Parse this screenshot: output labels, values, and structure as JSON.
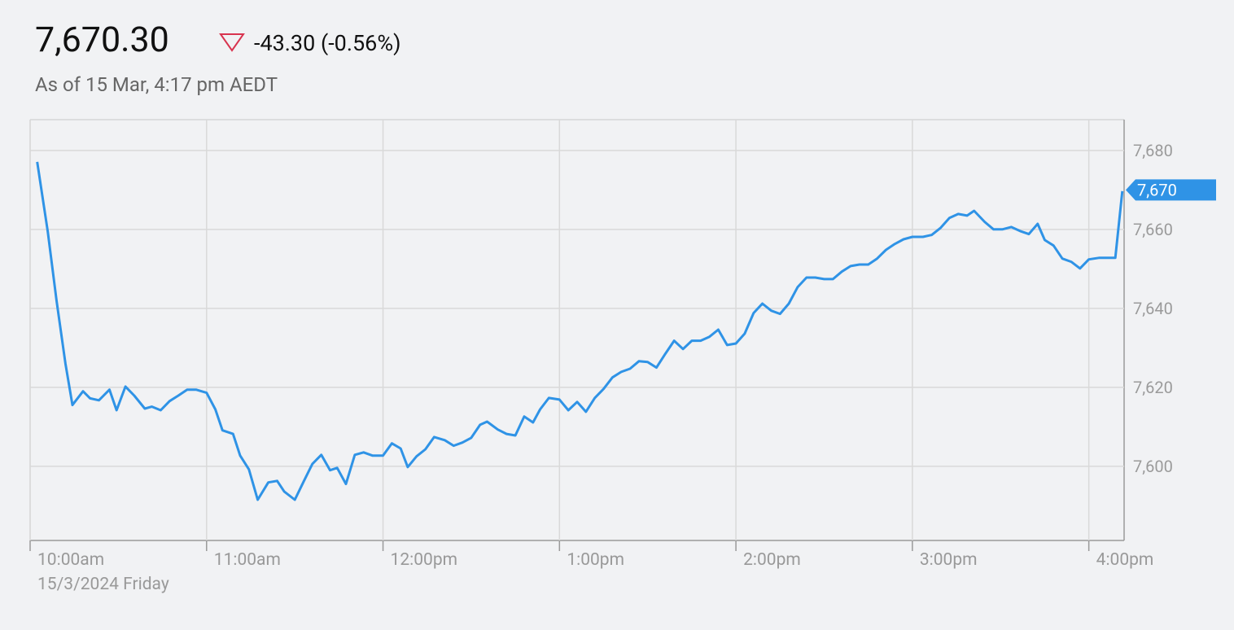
{
  "header": {
    "price": "7,670.30",
    "change": "-43.30 (-0.56%)",
    "as_of": "As of 15 Mar, 4:17 pm AEDT"
  },
  "chart_data": {
    "type": "line",
    "color": "#2f93e6",
    "grid": true,
    "date_label": "15/3/2024 Friday",
    "xlim": [
      10,
      16.2
    ],
    "ylim": [
      7581.2,
      7687.8
    ],
    "xticks": [
      {
        "value": 10,
        "label": "10:00am"
      },
      {
        "value": 11,
        "label": "11:00am"
      },
      {
        "value": 12,
        "label": "12:00pm"
      },
      {
        "value": 13,
        "label": "1:00pm"
      },
      {
        "value": 14,
        "label": "2:00pm"
      },
      {
        "value": 15,
        "label": "3:00pm"
      },
      {
        "value": 16,
        "label": "4:00pm"
      }
    ],
    "yticks": [
      {
        "value": 7600,
        "label": "7,600"
      },
      {
        "value": 7620,
        "label": "7,620"
      },
      {
        "value": 7640,
        "label": "7,640"
      },
      {
        "value": 7660,
        "label": "7,660"
      },
      {
        "value": 7680,
        "label": "7,680"
      }
    ],
    "current_marker": {
      "value": 7670,
      "label": "7,670"
    },
    "x": [
      10.04,
      10.1,
      10.15,
      10.2,
      10.24,
      10.3,
      10.34,
      10.39,
      10.45,
      10.49,
      10.54,
      10.59,
      10.65,
      10.69,
      10.74,
      10.79,
      10.84,
      10.89,
      10.94,
      11.0,
      11.05,
      11.09,
      11.15,
      11.19,
      11.24,
      11.29,
      11.35,
      11.4,
      11.44,
      11.5,
      11.55,
      11.6,
      11.65,
      11.7,
      11.74,
      11.79,
      11.84,
      11.89,
      11.94,
      12.0,
      12.05,
      12.1,
      12.14,
      12.19,
      12.24,
      12.29,
      12.35,
      12.4,
      12.45,
      12.5,
      12.55,
      12.59,
      12.65,
      12.7,
      12.75,
      12.8,
      12.85,
      12.89,
      12.94,
      13.0,
      13.05,
      13.1,
      13.15,
      13.2,
      13.25,
      13.3,
      13.35,
      13.4,
      13.45,
      13.5,
      13.55,
      13.6,
      13.65,
      13.7,
      13.75,
      13.8,
      13.85,
      13.9,
      13.95,
      14.0,
      14.05,
      14.1,
      14.15,
      14.2,
      14.25,
      14.3,
      14.35,
      14.4,
      14.45,
      14.5,
      14.55,
      14.6,
      14.65,
      14.7,
      14.75,
      14.8,
      14.85,
      14.9,
      14.95,
      15.0,
      15.06,
      15.11,
      15.16,
      15.21,
      15.26,
      15.31,
      15.35,
      15.41,
      15.46,
      15.51,
      15.56,
      15.61,
      15.66,
      15.71,
      15.75,
      15.8,
      15.85,
      15.9,
      15.95,
      16.0,
      16.06,
      16.11,
      16.15,
      16.19
    ],
    "values": [
      7677.1,
      7659.4,
      7641.9,
      7626.0,
      7615.5,
      7619.0,
      7617.2,
      7616.7,
      7619.4,
      7614.2,
      7620.2,
      7617.9,
      7614.6,
      7615.1,
      7614.2,
      7616.5,
      7617.9,
      7619.4,
      7619.4,
      7618.6,
      7614.4,
      7609.1,
      7608.2,
      7602.7,
      7599.2,
      7591.5,
      7595.9,
      7596.3,
      7593.6,
      7591.5,
      7596.1,
      7600.6,
      7602.9,
      7599.0,
      7599.6,
      7595.5,
      7602.9,
      7603.5,
      7602.7,
      7602.7,
      7605.8,
      7604.5,
      7599.8,
      7602.5,
      7604.3,
      7607.4,
      7606.6,
      7605.2,
      7606.0,
      7607.2,
      7610.5,
      7611.3,
      7609.3,
      7608.2,
      7607.8,
      7612.6,
      7611.1,
      7614.4,
      7617.3,
      7616.9,
      7614.2,
      7616.3,
      7613.8,
      7617.3,
      7619.6,
      7622.5,
      7623.9,
      7624.7,
      7626.6,
      7626.4,
      7625.0,
      7628.5,
      7631.8,
      7629.7,
      7631.8,
      7631.8,
      7632.8,
      7634.6,
      7630.7,
      7631.1,
      7633.6,
      7638.8,
      7641.2,
      7639.4,
      7638.6,
      7641.2,
      7645.4,
      7647.8,
      7647.8,
      7647.4,
      7647.4,
      7649.3,
      7650.7,
      7651.1,
      7651.1,
      7652.6,
      7654.8,
      7656.3,
      7657.5,
      7658.1,
      7658.1,
      7658.6,
      7660.4,
      7662.9,
      7663.9,
      7663.5,
      7664.7,
      7661.9,
      7660.0,
      7660.0,
      7660.6,
      7659.6,
      7658.8,
      7661.4,
      7657.3,
      7655.9,
      7652.6,
      7651.8,
      7650.1,
      7652.4,
      7652.8,
      7652.8,
      7652.8,
      7669.7
    ]
  }
}
